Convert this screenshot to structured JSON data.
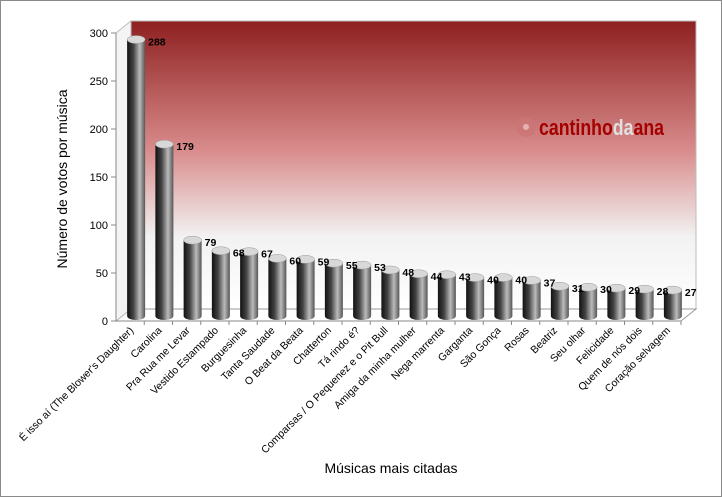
{
  "chart_data": {
    "type": "bar",
    "style": "3d-cylinder",
    "title": "",
    "xlabel": "Músicas mais citadas",
    "ylabel": "Número de votos por música",
    "ylim": [
      0,
      300
    ],
    "yticks": [
      0,
      50,
      100,
      150,
      200,
      250,
      300
    ],
    "grid": false,
    "legend": "none",
    "categories": [
      "É isso aí (The Blower's Daughter)",
      "Carolina",
      "Pra Rua me Levar",
      "Vestido Estampado",
      "Burguesinha",
      "Tanta Saudade",
      "O Beat da Beata",
      "Chatterton",
      "Tá rindo é?",
      "Comparsas / O Pequenez e o Pit Bull",
      "Amiga da minha mulher",
      "Nega marrenta",
      "Garganta",
      "São Gonça",
      "Rosas",
      "Beatriz",
      "Seu olhar",
      "Felicidade",
      "Quem de nós dois",
      "Coração selvagem"
    ],
    "values": [
      288,
      179,
      79,
      68,
      67,
      60,
      59,
      55,
      53,
      48,
      44,
      43,
      40,
      40,
      37,
      31,
      30,
      29,
      28,
      27
    ]
  },
  "watermark": {
    "text_a": "cantinho",
    "text_b": "da",
    "text_c": "ana"
  },
  "colors": {
    "wall_top": "#9b2a2a",
    "wall_bottom": "#ffffff",
    "logo": "#a40000"
  }
}
